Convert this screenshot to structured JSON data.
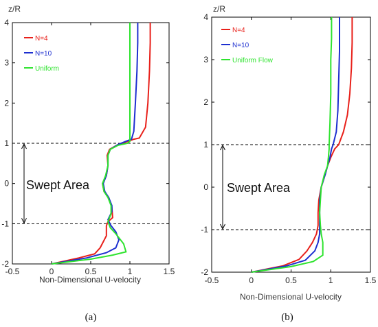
{
  "figure": {
    "panels": [
      {
        "caption": "(a)",
        "xlabel": "Non-Dimensional U-velocity",
        "ylabel": "z/R",
        "annotation": "Swept Area",
        "xticks": [
          "-0.5",
          "0",
          "0.5",
          "1",
          "1.5"
        ],
        "yticks": [
          "-2",
          "-1",
          "0",
          "1",
          "2",
          "3",
          "4"
        ]
      },
      {
        "caption": "(b)",
        "xlabel": "Non-Dimensional U-velocity",
        "ylabel": "z/R",
        "annotation": "Swept Area",
        "xticks": [
          "-0.5",
          "0",
          "0.5",
          "1",
          "1.5"
        ],
        "yticks": [
          "-2",
          "-1",
          "0",
          "1",
          "2",
          "3",
          "4"
        ]
      }
    ]
  },
  "chart_data": [
    {
      "type": "line",
      "title": "",
      "xlabel": "Non-Dimensional U-velocity",
      "ylabel": "z/R",
      "xlim": [
        -0.5,
        1.5
      ],
      "ylim": [
        -2,
        4
      ],
      "legend_position": "top-left",
      "swept_area": [
        -1,
        1
      ],
      "series": [
        {
          "name": "N=4",
          "color": "#e8201a",
          "points": [
            [
              0.0,
              -2.0
            ],
            [
              0.35,
              -1.85
            ],
            [
              0.55,
              -1.75
            ],
            [
              0.62,
              -1.6
            ],
            [
              0.7,
              -1.3
            ],
            [
              0.7,
              -1.05
            ],
            [
              0.72,
              -0.95
            ],
            [
              0.78,
              -0.85
            ],
            [
              0.77,
              -0.6
            ],
            [
              0.73,
              -0.35
            ],
            [
              0.67,
              -0.2
            ],
            [
              0.65,
              0.0
            ],
            [
              0.7,
              0.2
            ],
            [
              0.72,
              0.45
            ],
            [
              0.71,
              0.7
            ],
            [
              0.74,
              0.85
            ],
            [
              0.85,
              0.97
            ],
            [
              0.98,
              1.05
            ],
            [
              1.05,
              1.1
            ],
            [
              1.12,
              1.13
            ],
            [
              1.2,
              1.4
            ],
            [
              1.23,
              2.0
            ],
            [
              1.25,
              2.8
            ],
            [
              1.26,
              3.5
            ],
            [
              1.26,
              4.0
            ]
          ]
        },
        {
          "name": "N=10",
          "color": "#1d2fd0",
          "points": [
            [
              0.0,
              -2.0
            ],
            [
              0.45,
              -1.85
            ],
            [
              0.7,
              -1.72
            ],
            [
              0.82,
              -1.6
            ],
            [
              0.86,
              -1.4
            ],
            [
              0.82,
              -1.2
            ],
            [
              0.76,
              -1.05
            ],
            [
              0.72,
              -0.9
            ],
            [
              0.77,
              -0.7
            ],
            [
              0.77,
              -0.55
            ],
            [
              0.73,
              -0.35
            ],
            [
              0.68,
              -0.2
            ],
            [
              0.66,
              0.0
            ],
            [
              0.7,
              0.2
            ],
            [
              0.72,
              0.45
            ],
            [
              0.72,
              0.7
            ],
            [
              0.75,
              0.85
            ],
            [
              0.85,
              0.97
            ],
            [
              0.95,
              1.05
            ],
            [
              1.02,
              1.1
            ],
            [
              1.05,
              1.3
            ],
            [
              1.07,
              2.0
            ],
            [
              1.09,
              2.8
            ],
            [
              1.1,
              3.5
            ],
            [
              1.1,
              4.0
            ]
          ]
        },
        {
          "name": "Uniform",
          "color": "#2ee32e",
          "points": [
            [
              0.0,
              -2.0
            ],
            [
              0.5,
              -1.88
            ],
            [
              0.78,
              -1.78
            ],
            [
              0.95,
              -1.7
            ],
            [
              0.92,
              -1.5
            ],
            [
              0.82,
              -1.25
            ],
            [
              0.75,
              -1.1
            ],
            [
              0.72,
              -0.95
            ],
            [
              0.76,
              -0.75
            ],
            [
              0.76,
              -0.55
            ],
            [
              0.72,
              -0.35
            ],
            [
              0.67,
              -0.2
            ],
            [
              0.65,
              0.0
            ],
            [
              0.69,
              0.2
            ],
            [
              0.72,
              0.45
            ],
            [
              0.72,
              0.7
            ],
            [
              0.75,
              0.85
            ],
            [
              0.85,
              0.95
            ],
            [
              0.97,
              1.0
            ],
            [
              1.0,
              1.05
            ],
            [
              1.0,
              1.5
            ],
            [
              1.0,
              2.5
            ],
            [
              1.0,
              3.5
            ],
            [
              1.0,
              4.0
            ]
          ]
        }
      ]
    },
    {
      "type": "line",
      "title": "",
      "xlabel": "Non-Dimensional U-velocity",
      "ylabel": "z/R",
      "xlim": [
        -0.5,
        1.5
      ],
      "ylim": [
        -2,
        4
      ],
      "legend_position": "top-left",
      "swept_area": [
        -1,
        1
      ],
      "series": [
        {
          "name": "N=4",
          "color": "#e8201a",
          "points": [
            [
              0.0,
              -2.0
            ],
            [
              0.4,
              -1.85
            ],
            [
              0.6,
              -1.7
            ],
            [
              0.7,
              -1.5
            ],
            [
              0.77,
              -1.3
            ],
            [
              0.82,
              -1.1
            ],
            [
              0.84,
              -0.9
            ],
            [
              0.84,
              -0.6
            ],
            [
              0.85,
              -0.3
            ],
            [
              0.88,
              0.0
            ],
            [
              0.93,
              0.3
            ],
            [
              0.96,
              0.5
            ],
            [
              1.0,
              0.7
            ],
            [
              1.05,
              0.9
            ],
            [
              1.1,
              1.0
            ],
            [
              1.16,
              1.3
            ],
            [
              1.21,
              1.7
            ],
            [
              1.24,
              2.2
            ],
            [
              1.26,
              2.8
            ],
            [
              1.27,
              3.4
            ],
            [
              1.27,
              4.0
            ]
          ]
        },
        {
          "name": "N=10",
          "color": "#1d2fd0",
          "points": [
            [
              0.0,
              -2.0
            ],
            [
              0.45,
              -1.85
            ],
            [
              0.68,
              -1.72
            ],
            [
              0.8,
              -1.5
            ],
            [
              0.84,
              -1.3
            ],
            [
              0.86,
              -1.1
            ],
            [
              0.86,
              -0.9
            ],
            [
              0.86,
              -0.6
            ],
            [
              0.86,
              -0.3
            ],
            [
              0.88,
              0.0
            ],
            [
              0.93,
              0.3
            ],
            [
              0.96,
              0.5
            ],
            [
              0.99,
              0.7
            ],
            [
              1.01,
              0.9
            ],
            [
              1.03,
              1.0
            ],
            [
              1.07,
              1.3
            ],
            [
              1.09,
              1.8
            ],
            [
              1.1,
              2.5
            ],
            [
              1.11,
              3.2
            ],
            [
              1.11,
              4.0
            ]
          ]
        },
        {
          "name": "Uniform Flow",
          "color": "#2ee32e",
          "points": [
            [
              0.0,
              -2.0
            ],
            [
              0.5,
              -1.87
            ],
            [
              0.78,
              -1.75
            ],
            [
              0.9,
              -1.6
            ],
            [
              0.9,
              -1.3
            ],
            [
              0.88,
              -1.1
            ],
            [
              0.87,
              -0.9
            ],
            [
              0.86,
              -0.6
            ],
            [
              0.87,
              -0.3
            ],
            [
              0.88,
              0.0
            ],
            [
              0.92,
              0.3
            ],
            [
              0.96,
              0.5
            ],
            [
              0.97,
              0.7
            ],
            [
              0.98,
              0.9
            ],
            [
              0.98,
              1.0
            ],
            [
              0.99,
              1.5
            ],
            [
              1.0,
              2.2
            ],
            [
              1.0,
              3.0
            ],
            [
              1.01,
              3.5
            ],
            [
              1.01,
              4.0
            ]
          ]
        }
      ]
    }
  ]
}
